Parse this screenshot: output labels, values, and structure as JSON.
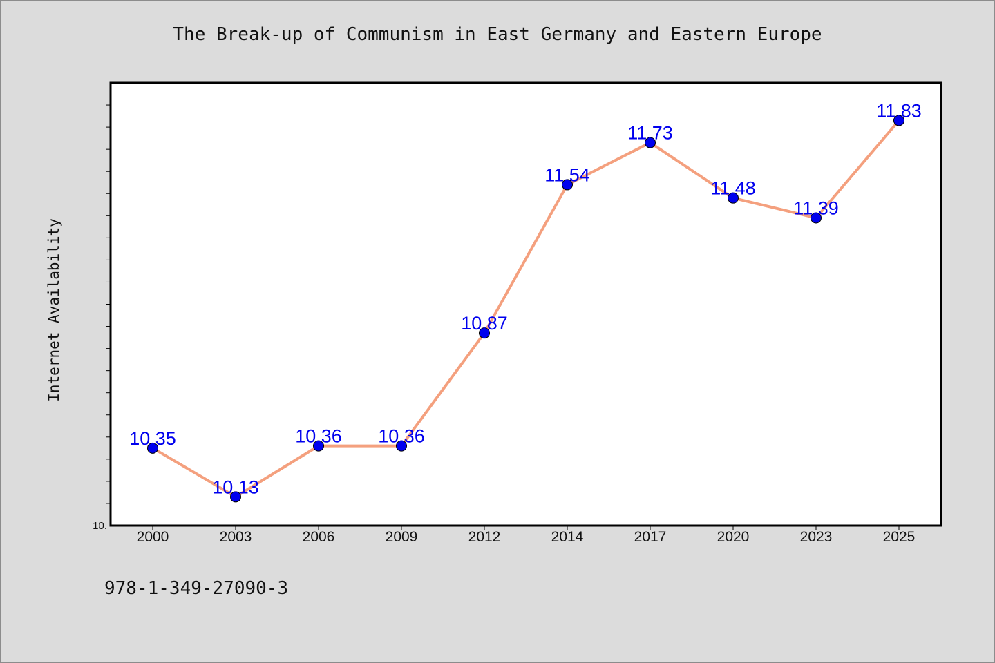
{
  "chart_data": {
    "type": "line",
    "title": "The Break-up of Communism in East Germany and Eastern Europe",
    "xlabel": "",
    "ylabel": "Internet Availability",
    "categories": [
      "2000",
      "2003",
      "2006",
      "2009",
      "2012",
      "2014",
      "2017",
      "2020",
      "2023",
      "2025"
    ],
    "series": [
      {
        "values": [
          10.35,
          10.13,
          10.36,
          10.36,
          10.87,
          11.54,
          11.73,
          11.48,
          11.39,
          11.83
        ]
      }
    ],
    "value_labels": [
      "10.35",
      "10.13",
      "10.36",
      "10.36",
      "10.87",
      "11.54",
      "11.73",
      "11.48",
      "11.39",
      "11.83"
    ],
    "ylim": [
      10.0,
      12.0
    ],
    "y_tick_labels": [
      {
        "value": 10.0,
        "label": "10."
      }
    ],
    "grid": false,
    "legend": "none",
    "colors": {
      "line": "#f4a07e",
      "marker": "#0000ee",
      "value_label": "#0000ee",
      "background": "#dcdcdc",
      "plot_background": "#ffffff"
    }
  },
  "footer": {
    "code": "978-1-349-27090-3"
  }
}
